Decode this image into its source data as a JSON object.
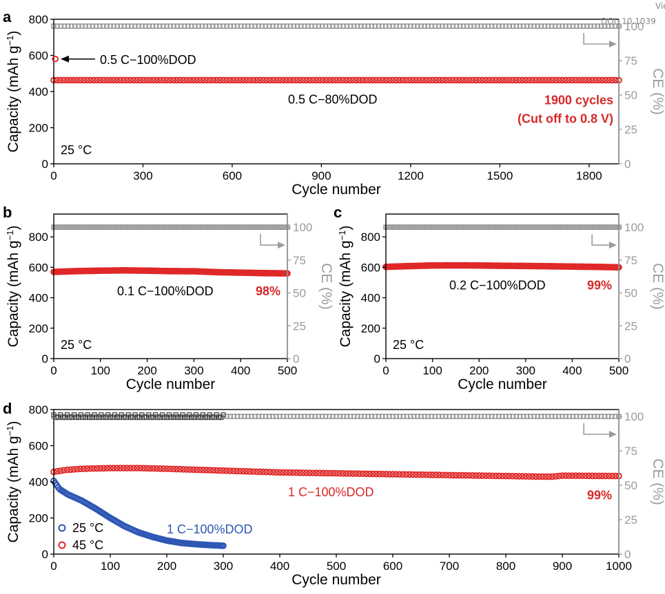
{
  "watermark": {
    "line1": "Vie",
    "line2": "DOI: 10.1039"
  },
  "colors": {
    "capacity_45": "#e02828",
    "capacity_25": "#2e57b4",
    "ce": "#9b9b9b",
    "axis": "#000000",
    "ce_axis": "#9b9b9b",
    "ann_red": "#d62828",
    "ann_blue": "#2e57b4"
  },
  "chart_data": [
    {
      "panel": "a",
      "type": "scatter",
      "xlabel": "Cycle number",
      "ylabel": "Capacity (mAh g−1)",
      "y2label": "CE (%)",
      "xlim": [
        0,
        1900
      ],
      "ylim": [
        0,
        800
      ],
      "y2lim": [
        0,
        105
      ],
      "xticks": [
        0,
        300,
        600,
        900,
        1200,
        1500,
        1800
      ],
      "yticks": [
        0,
        200,
        400,
        600,
        800
      ],
      "y2ticks": [
        0,
        25,
        50,
        75,
        100
      ],
      "temperature_label": "25 °C",
      "series": [
        {
          "role": "capacity",
          "label": "0.5 C−80%DOD",
          "color": "#e02828",
          "x": [
            0,
            100,
            300,
            600,
            900,
            1200,
            1500,
            1800,
            1900
          ],
          "y": [
            463,
            463,
            463,
            463,
            463,
            463,
            463,
            463,
            463
          ]
        },
        {
          "role": "ce",
          "color": "#9b9b9b",
          "x": [
            0,
            300,
            600,
            900,
            1200,
            1500,
            1800,
            1900
          ],
          "y": [
            100,
            100,
            100,
            100,
            100,
            100,
            100,
            100
          ]
        }
      ],
      "annotations": [
        {
          "text": "0.5 C−100%DOD",
          "style": "arrow",
          "x": 5,
          "y": 580
        },
        {
          "text": "0.5 C−80%DOD",
          "style": "plain"
        },
        {
          "text": "1900 cycles",
          "style": "red-bold"
        },
        {
          "text": "(Cut off to 0.8 V)",
          "style": "red-bold"
        }
      ]
    },
    {
      "panel": "b",
      "type": "scatter",
      "xlabel": "Cycle number",
      "ylabel": "Capacity (mAh g−1)",
      "y2label": "CE (%)",
      "xlim": [
        0,
        500
      ],
      "ylim": [
        0,
        950
      ],
      "y2lim": [
        0,
        110
      ],
      "xticks": [
        0,
        100,
        200,
        300,
        400,
        500
      ],
      "yticks": [
        0,
        200,
        400,
        600,
        800
      ],
      "y2ticks": [
        0,
        25,
        50,
        75,
        100
      ],
      "temperature_label": "25 °C",
      "series": [
        {
          "role": "capacity",
          "label": "0.1 C−100%DOD",
          "color": "#e02828",
          "x": [
            0,
            50,
            100,
            150,
            200,
            250,
            300,
            350,
            400,
            450,
            500
          ],
          "y": [
            570,
            575,
            578,
            580,
            578,
            575,
            574,
            568,
            565,
            562,
            560
          ]
        },
        {
          "role": "ce",
          "color": "#9b9b9b",
          "x": [
            0,
            100,
            200,
            300,
            400,
            500
          ],
          "y": [
            100,
            100,
            100,
            100,
            100,
            100
          ]
        }
      ],
      "annotations": [
        {
          "text": "0.1 C−100%DOD",
          "style": "plain"
        },
        {
          "text": "98%",
          "style": "red-bold"
        }
      ]
    },
    {
      "panel": "c",
      "type": "scatter",
      "xlabel": "Cycle number",
      "ylabel": "Capacity (mAh g−1)",
      "y2label": "CE (%)",
      "xlim": [
        0,
        500
      ],
      "ylim": [
        0,
        950
      ],
      "y2lim": [
        0,
        110
      ],
      "xticks": [
        0,
        100,
        200,
        300,
        400,
        500
      ],
      "yticks": [
        0,
        200,
        400,
        600,
        800
      ],
      "y2ticks": [
        0,
        25,
        50,
        75,
        100
      ],
      "temperature_label": "25 °C",
      "series": [
        {
          "role": "capacity",
          "label": "0.2 C−100%DOD",
          "color": "#e02828",
          "x": [
            0,
            50,
            100,
            150,
            200,
            250,
            300,
            350,
            400,
            450,
            500
          ],
          "y": [
            603,
            608,
            612,
            613,
            612,
            610,
            609,
            607,
            605,
            603,
            600
          ]
        },
        {
          "role": "ce",
          "color": "#9b9b9b",
          "x": [
            0,
            100,
            200,
            300,
            400,
            500
          ],
          "y": [
            100,
            100,
            100,
            100,
            100,
            100
          ]
        }
      ],
      "annotations": [
        {
          "text": "0.2 C−100%DOD",
          "style": "plain"
        },
        {
          "text": "99%",
          "style": "red-bold"
        }
      ]
    },
    {
      "panel": "d",
      "type": "scatter",
      "xlabel": "Cycle number",
      "ylabel": "Capacity (mAh g−1)",
      "y2label": "CE (%)",
      "xlim": [
        0,
        1000
      ],
      "ylim": [
        0,
        800
      ],
      "y2lim": [
        0,
        105
      ],
      "xticks": [
        0,
        100,
        200,
        300,
        400,
        500,
        600,
        700,
        800,
        900,
        1000
      ],
      "yticks": [
        0,
        200,
        400,
        600,
        800
      ],
      "y2ticks": [
        0,
        25,
        50,
        75,
        100
      ],
      "legend": [
        "25 °C",
        "45 °C"
      ],
      "legend_position": "bottom-left",
      "series": [
        {
          "role": "capacity",
          "name": "45 °C",
          "label": "1 C−100%DOD",
          "color": "#e02828",
          "x": [
            0,
            20,
            50,
            100,
            150,
            200,
            300,
            400,
            500,
            600,
            700,
            800,
            880,
            900,
            1000
          ],
          "y": [
            455,
            465,
            472,
            476,
            476,
            472,
            462,
            452,
            447,
            442,
            437,
            432,
            428,
            434,
            432
          ]
        },
        {
          "role": "capacity",
          "name": "25 °C",
          "label": "1 C−100%DOD",
          "color": "#2e57b4",
          "x": [
            0,
            10,
            25,
            50,
            75,
            100,
            125,
            150,
            175,
            200,
            225,
            250,
            275,
            300
          ],
          "y": [
            405,
            360,
            330,
            295,
            250,
            200,
            155,
            120,
            95,
            75,
            62,
            55,
            50,
            46
          ]
        },
        {
          "role": "ce",
          "color": "#9b9b9b",
          "x": [
            0,
            100,
            200,
            300,
            400,
            500,
            600,
            700,
            800,
            900,
            1000
          ],
          "y": [
            100,
            100,
            100,
            100,
            100,
            100,
            100,
            100,
            100,
            100,
            100
          ]
        }
      ],
      "annotations": [
        {
          "text": "1 C−100%DOD",
          "style": "red"
        },
        {
          "text": "99%",
          "style": "red-bold"
        },
        {
          "text": "1 C−100%DOD",
          "style": "blue"
        }
      ]
    }
  ]
}
